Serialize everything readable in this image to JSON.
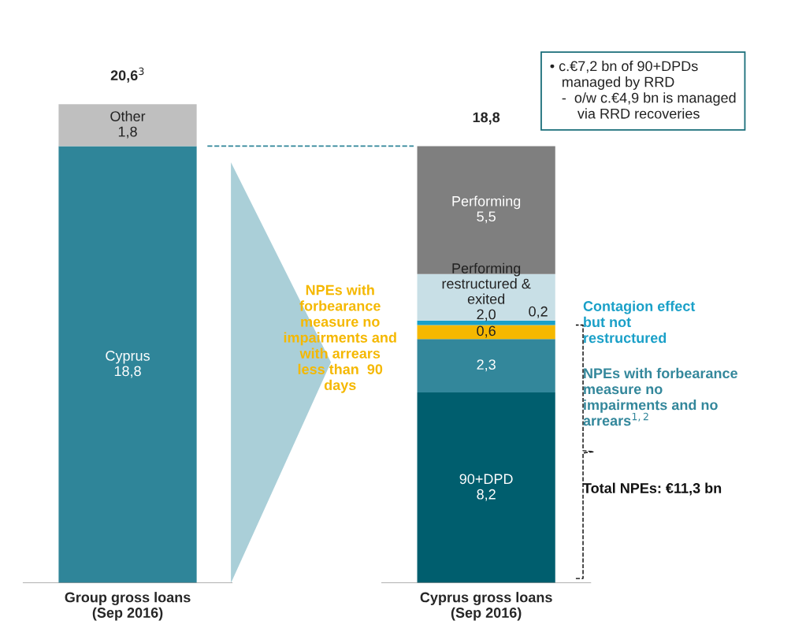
{
  "chart_data": {
    "type": "bar",
    "stacked": true,
    "categories": [
      "Group gross loans\n(Sep 2016)",
      "Cyprus gross loans\n(Sep 2016)"
    ],
    "series": [
      {
        "color": "#2f8599",
        "values": [
          18.8,
          null
        ],
        "value_labels": [
          "Cyprus\n18,8",
          null
        ]
      },
      {
        "color": "#005e6e",
        "values": [
          null,
          8.2
        ],
        "value_labels": [
          null,
          "90+DPD\n8,2"
        ]
      },
      {
        "color": "#33879b",
        "values": [
          null,
          2.3
        ],
        "value_labels": [
          null,
          "2,3"
        ]
      },
      {
        "color": "#f5b800",
        "values": [
          null,
          0.6
        ],
        "value_labels": [
          null,
          "0,6"
        ]
      },
      {
        "color": "#1aa0c8",
        "values": [
          null,
          0.2
        ],
        "value_labels": [
          null,
          "0,2"
        ]
      },
      {
        "color": "#c8dfe6",
        "values": [
          null,
          2.0
        ],
        "value_labels": [
          null,
          "Performing\nrestructured &\nexited\n2,0"
        ]
      },
      {
        "color": "#bfbfbf",
        "values": [
          1.8,
          null
        ],
        "value_labels": [
          "Other\n1,8",
          null
        ]
      },
      {
        "color": "#7f7f7f",
        "values": [
          null,
          5.5
        ],
        "value_labels": [
          null,
          "Performing\n5,5"
        ]
      }
    ],
    "totals": [
      "20,6$^{3}$",
      "18,8"
    ],
    "ref_lines": [
      {
        "axis": "y",
        "value": 18.8,
        "color": "#2f8599",
        "line_style": "dashed"
      }
    ],
    "annotations": [
      "• c.€7,2 bn of 90+DPDs\n   managed by RRD\n   -  o/w c.€4,9 bn is managed\n       via RRD recoveries",
      "NPEs with\nforbearance\nmeasure no\nimpairments and\nwith arrears\nless than  90\ndays",
      "Contagion effect\nbut not\nrestructured",
      "NPEs with forbearance\nmeasure no\nimpairments and no\narrears$^{1,2}$",
      "Total NPEs: €11,3 bn"
    ],
    "legend": false,
    "grid": false
  }
}
